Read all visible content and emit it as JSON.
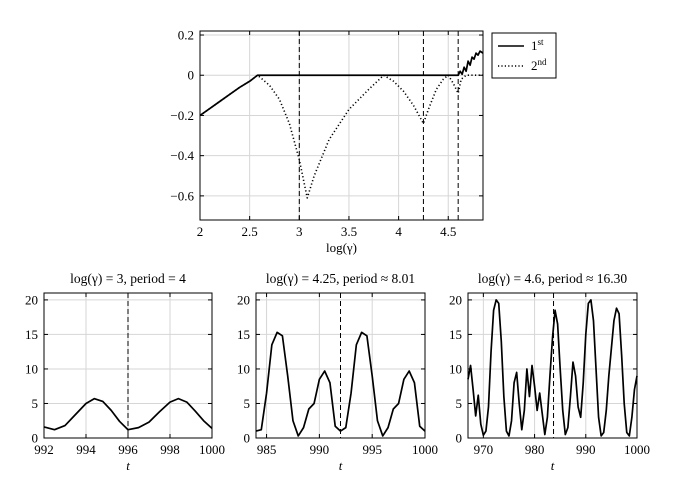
{
  "chart_data": [
    {
      "type": "line",
      "title": "",
      "xlabel": "log(γ)",
      "ylabel": "",
      "xlim": [
        2,
        4.85
      ],
      "ylim": [
        -0.72,
        0.22
      ],
      "xticks": [
        "2",
        "2.5",
        "3",
        "3.5",
        "4",
        "4.5"
      ],
      "yticks": [
        "0.2",
        "0",
        "−0.2",
        "−0.4",
        "−0.6"
      ],
      "grid": true,
      "legend": {
        "position": "outside-right",
        "entries": [
          {
            "base": "1",
            "sup": "st",
            "style": "solid"
          },
          {
            "base": "2",
            "sup": "nd",
            "style": "dotted"
          }
        ]
      },
      "vlines": [
        3,
        4.25,
        4.6
      ],
      "series": [
        {
          "name": "1st",
          "style": "solid",
          "x": [
            2,
            2.1,
            2.2,
            2.3,
            2.4,
            2.5,
            2.58,
            3,
            3.5,
            4,
            4.5,
            4.6,
            4.62,
            4.64,
            4.66,
            4.68,
            4.7,
            4.72,
            4.74,
            4.76,
            4.78,
            4.8,
            4.82,
            4.85
          ],
          "y": [
            -0.2,
            -0.165,
            -0.13,
            -0.095,
            -0.06,
            -0.03,
            0,
            0,
            0,
            0,
            0,
            0,
            0.02,
            0.005,
            0.04,
            0.02,
            0.07,
            0.05,
            0.09,
            0.08,
            0.11,
            0.1,
            0.12,
            0.11
          ]
        },
        {
          "name": "2nd",
          "style": "dotted",
          "x": [
            2,
            2.1,
            2.2,
            2.3,
            2.4,
            2.5,
            2.58,
            2.7,
            2.8,
            2.9,
            3.0,
            3.08,
            3.15,
            3.3,
            3.5,
            3.7,
            3.85,
            3.95,
            4.05,
            4.15,
            4.25,
            4.3,
            4.38,
            4.45,
            4.5,
            4.55,
            4.6,
            4.63,
            4.68,
            4.75,
            4.85
          ],
          "y": [
            -0.2,
            -0.165,
            -0.13,
            -0.095,
            -0.06,
            -0.03,
            0,
            -0.05,
            -0.12,
            -0.24,
            -0.42,
            -0.61,
            -0.5,
            -0.32,
            -0.17,
            -0.07,
            0,
            -0.03,
            -0.08,
            -0.15,
            -0.24,
            -0.17,
            -0.07,
            -0.02,
            0,
            -0.04,
            -0.09,
            -0.02,
            0,
            0,
            0
          ]
        }
      ]
    },
    {
      "type": "line",
      "title": "log(γ) = 3, period = 4",
      "xlabel": "t",
      "xlim": [
        992,
        1000
      ],
      "ylim": [
        0,
        21
      ],
      "xticks": [
        "992",
        "994",
        "996",
        "998",
        "1000"
      ],
      "yticks": [
        "20",
        "15",
        "10",
        "5",
        "0"
      ],
      "grid": true,
      "vline": 996,
      "series": [
        {
          "name": "solution",
          "x": [
            992,
            992.5,
            993,
            993.5,
            994,
            994.4,
            994.8,
            995.2,
            995.6,
            996,
            996.5,
            997,
            997.5,
            998,
            998.4,
            998.8,
            999.2,
            999.6,
            1000
          ],
          "y": [
            1.6,
            1.2,
            1.8,
            3.4,
            5.0,
            5.7,
            5.3,
            4.0,
            2.4,
            1.2,
            1.5,
            2.3,
            3.8,
            5.2,
            5.7,
            5.2,
            3.9,
            2.5,
            1.4
          ]
        }
      ]
    },
    {
      "type": "line",
      "title": "log(γ) = 4.25, period ≈ 8.01",
      "xlabel": "t",
      "xlim": [
        984,
        1000
      ],
      "ylim": [
        0,
        21
      ],
      "xticks": [
        "985",
        "990",
        "995",
        "1000"
      ],
      "yticks": [
        "20",
        "15",
        "10",
        "5",
        "0"
      ],
      "grid": true,
      "vline": 992,
      "series": [
        {
          "name": "solution",
          "x": [
            984,
            984.5,
            985,
            985.5,
            986,
            986.5,
            987,
            987.5,
            988,
            988.5,
            989,
            989.5,
            990,
            990.5,
            991,
            991.5,
            992,
            992.5,
            993,
            993.5,
            994,
            994.5,
            995,
            995.5,
            996,
            996.5,
            997,
            997.5,
            998,
            998.5,
            999,
            999.5,
            1000
          ],
          "y": [
            1.0,
            1.2,
            6.5,
            13.5,
            15.3,
            14.8,
            9.0,
            2.5,
            0.3,
            1.5,
            4.2,
            5.0,
            8.5,
            9.7,
            8.0,
            1.7,
            1.0,
            1.5,
            6.5,
            13.5,
            15.3,
            14.8,
            9.0,
            2.5,
            0.3,
            1.5,
            4.2,
            5.0,
            8.5,
            9.7,
            8.0,
            1.7,
            1.0
          ]
        }
      ]
    },
    {
      "type": "line",
      "title": "log(γ) = 4.6, period ≈ 16.30",
      "xlabel": "t",
      "xlim": [
        967,
        1000
      ],
      "ylim": [
        0,
        21
      ],
      "xticks": [
        "970",
        "980",
        "990",
        "1000"
      ],
      "yticks": [
        "20",
        "15",
        "10",
        "5",
        "0"
      ],
      "grid": true,
      "vline": 983.7,
      "series": [
        {
          "name": "solution",
          "x": [
            967,
            967.5,
            968,
            968.5,
            969,
            969.5,
            970,
            970.5,
            971,
            971.5,
            972,
            972.5,
            973,
            973.5,
            974,
            974.5,
            975,
            975.5,
            976,
            976.5,
            977,
            977.5,
            978,
            978.5,
            979,
            979.5,
            980,
            980.5,
            981,
            981.5,
            982,
            982.5,
            983,
            983.5,
            984,
            984.5,
            985,
            985.5,
            986,
            986.5,
            987,
            987.5,
            988,
            988.5,
            989,
            989.5,
            990,
            990.5,
            991,
            991.5,
            992,
            992.5,
            993,
            993.5,
            994,
            994.5,
            995,
            995.5,
            996,
            996.5,
            997,
            997.5,
            998,
            998.5,
            999,
            999.5,
            1000
          ],
          "y": [
            8.5,
            10.5,
            7.0,
            3.2,
            6.2,
            2.0,
            0.4,
            1.0,
            4.5,
            12.5,
            18.5,
            20.0,
            19.5,
            14.0,
            6.0,
            1.0,
            0.3,
            2.5,
            8.0,
            9.5,
            5.0,
            1.2,
            4.0,
            10.0,
            6.0,
            10.5,
            7.5,
            4.0,
            6.5,
            3.5,
            0.5,
            3.0,
            9.0,
            14.5,
            18.5,
            16.5,
            10.0,
            4.0,
            0.5,
            1.5,
            6.0,
            11.0,
            9.0,
            4.5,
            3.0,
            8.0,
            15.0,
            19.5,
            20.0,
            17.0,
            10.0,
            3.0,
            0.3,
            0.8,
            4.0,
            9.0,
            13.0,
            17.0,
            18.8,
            18.0,
            12.0,
            5.0,
            0.8,
            0.3,
            3.0,
            7.0,
            9.0
          ]
        }
      ]
    }
  ]
}
